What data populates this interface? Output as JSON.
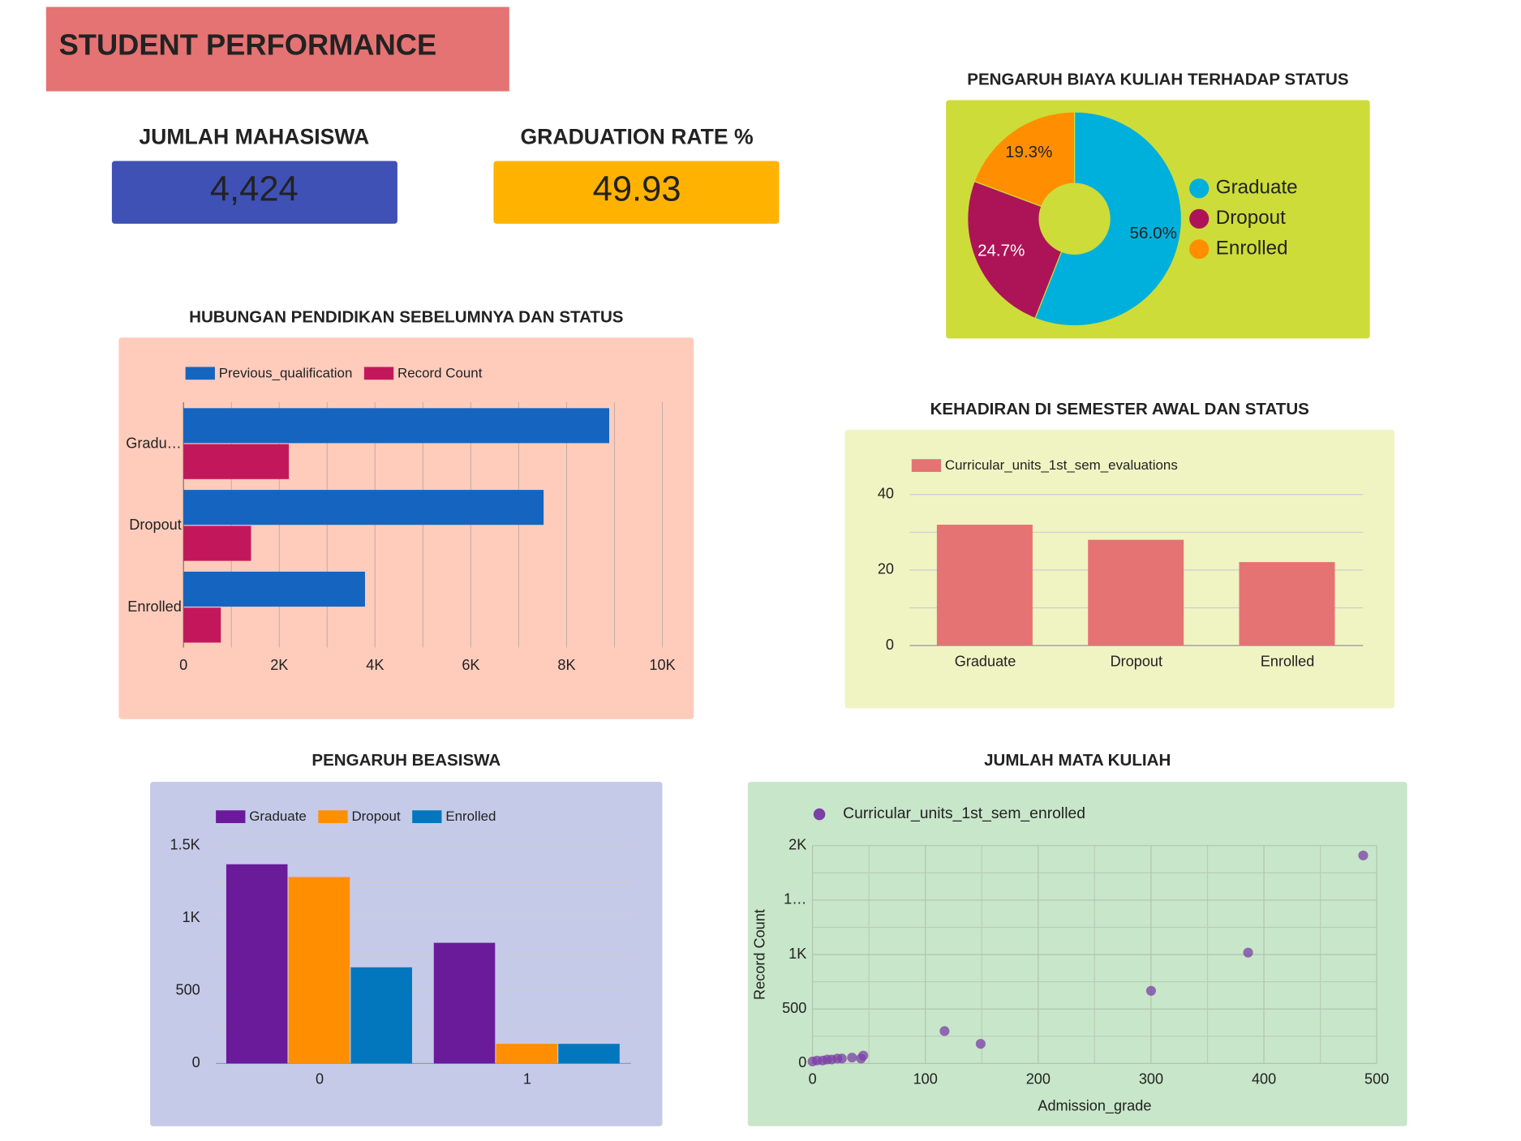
{
  "header": {
    "title": "STUDENT PERFORMANCE"
  },
  "kpis": [
    {
      "label": "JUMLAH MAHASISWA",
      "value": "4,424"
    },
    {
      "label": "GRADUATION RATE %",
      "value": "49.93"
    }
  ],
  "chart_data": [
    {
      "type": "pie",
      "title": "PENGARUH BIAYA KULIAH TERHADAP STATUS",
      "categories": [
        "Graduate",
        "Dropout",
        "Enrolled"
      ],
      "values": [
        56.0,
        24.7,
        19.3
      ],
      "value_labels": [
        "56.0%",
        "24.7%",
        "19.3%"
      ],
      "colors": [
        "#00b0dc",
        "#ad1457",
        "#ff8f00"
      ],
      "legend": "right"
    },
    {
      "type": "hbar",
      "title": "HUBUNGAN PENDIDIKAN SEBELUMNYA DAN STATUS",
      "categories": [
        "Gradu…",
        "Dropout",
        "Enrolled"
      ],
      "series": [
        {
          "name": "Previous_qualification",
          "color": "#1565c0",
          "values": [
            8890,
            7520,
            3790
          ]
        },
        {
          "name": "Record Count",
          "color": "#c2185b",
          "values": [
            2200,
            1410,
            780
          ]
        }
      ],
      "xlim": [
        0,
        10000
      ],
      "xticks": [
        0,
        {
          "value": 2000,
          "label": "2K"
        },
        {
          "value": 4000,
          "label": "4K"
        },
        {
          "value": 6000,
          "label": "6K"
        },
        {
          "value": 8000,
          "label": "8K"
        },
        {
          "value": 10000,
          "label": "10K"
        }
      ],
      "xminor": [
        1000,
        3000,
        5000,
        7000,
        9000
      ],
      "grid": true,
      "legend": "top"
    },
    {
      "type": "bar",
      "title": "KEHADIRAN DI SEMESTER AWAL DAN STATUS",
      "categories": [
        "Graduate",
        "Dropout",
        "Enrolled"
      ],
      "series": [
        {
          "name": "Curricular_units_1st_sem_evaluations",
          "color": "#e57373",
          "values": [
            32,
            28,
            22.1
          ]
        }
      ],
      "ylim": [
        0,
        40
      ],
      "yticks": [
        0,
        20,
        40
      ],
      "yminor": [
        10,
        30
      ],
      "grid": true,
      "legend": "top"
    },
    {
      "type": "bar",
      "title": "PENGARUH BEASISWA",
      "categories": [
        "0",
        "1"
      ],
      "series": [
        {
          "name": "Graduate",
          "color": "#6a1b9a",
          "values": [
            1372,
            831
          ]
        },
        {
          "name": "Dropout",
          "color": "#ff8f00",
          "values": [
            1284,
            135
          ]
        },
        {
          "name": "Enrolled",
          "color": "#0277bd",
          "values": [
            662,
            135
          ]
        }
      ],
      "ylim": [
        0,
        1500
      ],
      "yticks": [
        0,
        500,
        {
          "value": 1000,
          "label": "1K"
        },
        {
          "value": 1500,
          "label": "1.5K"
        }
      ],
      "yminor": [
        250,
        750,
        1250
      ],
      "grid": true,
      "legend": "top"
    },
    {
      "type": "scatter",
      "title": "JUMLAH MATA KULIAH",
      "x_label": "Admission_grade",
      "y_label": "Record Count",
      "series": [
        {
          "name": "Curricular_units_1st_sem_enrolled",
          "color": "#7b3fa6",
          "x": [
            0,
            4,
            9,
            13,
            17,
            22,
            26,
            35,
            43,
            45,
            117,
            149,
            300,
            386,
            488
          ],
          "values": [
            18,
            27,
            27,
            36,
            36,
            45,
            45,
            54,
            45,
            72,
            297,
            180,
            667,
            1018,
            1910
          ]
        }
      ],
      "xlim": [
        0,
        500
      ],
      "xticks": [
        0,
        100,
        200,
        300,
        400,
        500
      ],
      "xminor": [
        50,
        150,
        250,
        350,
        450
      ],
      "ylim": [
        0,
        2000
      ],
      "yticks": [
        0,
        500,
        {
          "value": 1000,
          "label": "1K"
        },
        {
          "value": 1500,
          "label": "1…"
        },
        {
          "value": 2000,
          "label": "2K"
        }
      ],
      "yminor": [
        250,
        750,
        1250,
        1750
      ],
      "grid": true,
      "legend": "top"
    }
  ]
}
